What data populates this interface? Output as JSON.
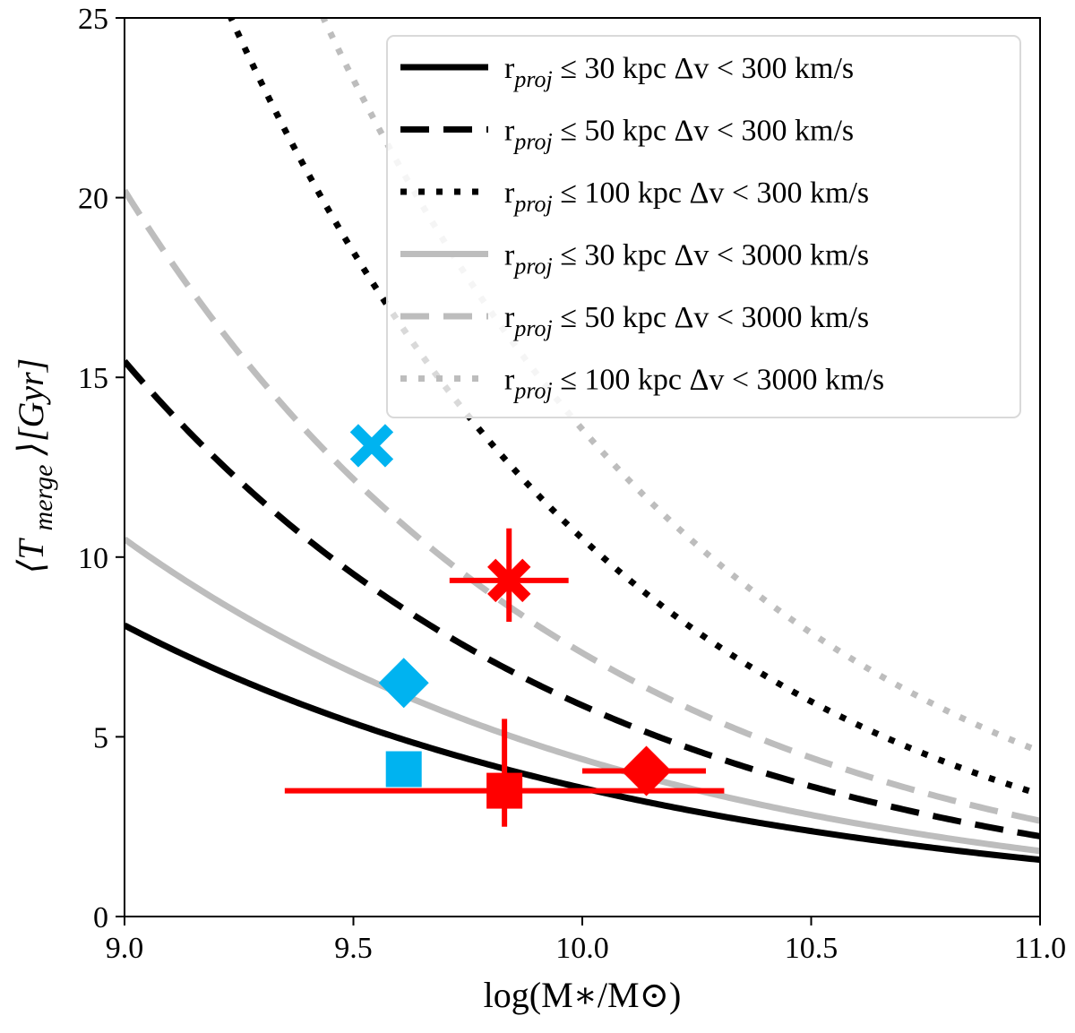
{
  "chart_data": {
    "type": "line",
    "title": "",
    "xlabel": "log(M∗/M⊙)",
    "ylabel": "⟨T",
    "ylabel_sub": "merge",
    "ylabel_end": "⟩[Gyr]",
    "xlim": [
      9.0,
      11.0
    ],
    "ylim": [
      0,
      25
    ],
    "x_ticks": [
      9.0,
      9.5,
      10.0,
      10.5,
      11.0
    ],
    "x_tick_labels": [
      "9.0",
      "9.5",
      "10.0",
      "10.5",
      "11.0"
    ],
    "y_ticks": [
      0,
      5,
      10,
      15,
      20,
      25
    ],
    "y_tick_labels": [
      "0",
      "5",
      "10",
      "15",
      "20",
      "25"
    ],
    "grid": false,
    "legend_position": "top-right",
    "curve_model": "T = k * 10^(-slope*(x-9))",
    "series": [
      {
        "name": "r proj ≤ 30 kpc Δv < 300 km/s",
        "prefix": "r",
        "sub": "proj",
        "rest": " ≤  30 kpc Δv < 300 km/s",
        "color": "#000000",
        "style": "solid",
        "k": 8.1,
        "slope": 0.355
      },
      {
        "name": "r proj ≤ 50 kpc Δv < 300 km/s",
        "prefix": "r",
        "sub": "proj",
        "rest": " ≤  50 kpc Δv < 300 km/s",
        "color": "#000000",
        "style": "dashed",
        "k": 15.45,
        "slope": 0.42
      },
      {
        "name": "r proj ≤ 100 kpc Δv < 300 km/s",
        "prefix": "r",
        "sub": "proj",
        "rest": " ≤  100 kpc Δv < 300 km/s",
        "color": "#000000",
        "style": "dotted",
        "k": 32.5,
        "slope": 0.49
      },
      {
        "name": "r proj ≤ 30 kpc Δv < 3000 km/s",
        "prefix": "r",
        "sub": "proj",
        "rest": " ≤  30 kpc Δv < 3000 km/s",
        "color": "#bdbdbd",
        "style": "solid",
        "k": 10.5,
        "slope": 0.38
      },
      {
        "name": "r proj ≤ 50 kpc Δv < 3000 km/s",
        "prefix": "r",
        "sub": "proj",
        "rest": " ≤  50 kpc Δv < 3000 km/s",
        "color": "#bdbdbd",
        "style": "dashed",
        "k": 20.2,
        "slope": 0.44
      },
      {
        "name": "r proj ≤ 100 kpc Δv < 3000 km/s",
        "prefix": "r",
        "sub": "proj",
        "rest": " ≤  100 kpc Δv < 3000 km/s",
        "color": "#bdbdbd",
        "style": "dotted",
        "k": 40.0,
        "slope": 0.47
      }
    ],
    "points": [
      {
        "name": "cyan-cross",
        "marker": "x",
        "color": "#00b3f0",
        "x": 9.54,
        "y": 13.1,
        "xerr": null,
        "yerr": null
      },
      {
        "name": "cyan-diamond",
        "marker": "diamond",
        "color": "#00b3f0",
        "x": 9.61,
        "y": 6.5,
        "xerr": null,
        "yerr": null
      },
      {
        "name": "cyan-square",
        "marker": "square",
        "color": "#00b3f0",
        "x": 9.61,
        "y": 4.1,
        "xerr": null,
        "yerr": null
      },
      {
        "name": "red-cross",
        "marker": "x",
        "color": "#ff0000",
        "x": 9.84,
        "y": 9.35,
        "xerr": [
          0.13,
          0.13
        ],
        "yerr": [
          1.15,
          1.45
        ]
      },
      {
        "name": "red-square",
        "marker": "square",
        "color": "#ff0000",
        "x": 9.83,
        "y": 3.5,
        "xerr": [
          0.48,
          0.48
        ],
        "yerr": [
          1.0,
          2.0
        ]
      },
      {
        "name": "red-diamond",
        "marker": "diamond",
        "color": "#ff0000",
        "x": 10.14,
        "y": 4.05,
        "xerr": [
          0.14,
          0.13
        ],
        "yerr": [
          0.15,
          0.15
        ]
      }
    ]
  }
}
